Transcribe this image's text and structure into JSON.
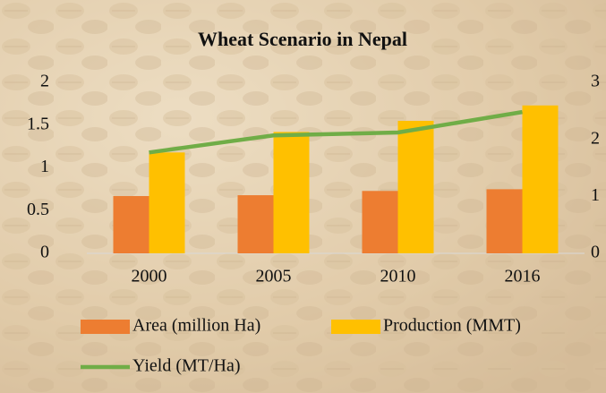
{
  "chart_data": {
    "type": "bar",
    "title": "Wheat Scenario in Nepal",
    "categories": [
      "2000",
      "2005",
      "2010",
      "2016"
    ],
    "series": [
      {
        "name": "Area (million Ha)",
        "color": "#ed7d31",
        "type": "bar",
        "values": [
          0.67,
          0.68,
          0.73,
          0.75
        ]
      },
      {
        "name": "Production (MMT)",
        "color": "#ffc000",
        "type": "bar",
        "values": [
          1.18,
          1.42,
          1.55,
          1.73
        ]
      },
      {
        "name": "Yield (MT/Ha)",
        "color": "#70ad47",
        "type": "line",
        "axis": "y2",
        "values": [
          1.77,
          2.07,
          2.12,
          2.48
        ]
      }
    ],
    "ylim": [
      0,
      2
    ],
    "yticks": [
      0,
      0.5,
      1,
      1.5,
      2
    ],
    "y2lim": [
      0,
      3
    ],
    "y2ticks": [
      0,
      1,
      2,
      3
    ],
    "grid": false
  }
}
